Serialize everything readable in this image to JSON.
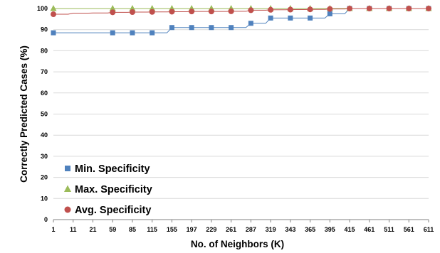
{
  "chart_data": {
    "type": "line",
    "title": "",
    "xlabel": "No. of Neighbors (K)",
    "ylabel": "Correctly Predicted Cases (%)",
    "ylim": [
      0,
      100
    ],
    "yticks": [
      "0",
      "10",
      "20",
      "30",
      "40",
      "50",
      "60",
      "70",
      "80",
      "90",
      "100"
    ],
    "categories": [
      "1",
      "11",
      "21",
      "59",
      "85",
      "115",
      "155",
      "197",
      "229",
      "261",
      "287",
      "319",
      "343",
      "365",
      "395",
      "415",
      "461",
      "511",
      "561",
      "611"
    ],
    "grid": "horizontal",
    "legend_position": "bottom-left",
    "series": [
      {
        "name": "Min. Specificity",
        "color": "#4f81bd",
        "marker": "square",
        "markers": [
          88.5,
          null,
          null,
          88.5,
          88.5,
          88.5,
          91,
          91,
          91,
          91,
          93,
          95.5,
          95.5,
          95.5,
          97.5,
          100,
          100,
          100,
          100,
          100
        ],
        "line": [
          88.5,
          88.5,
          88.5,
          88.5,
          88.5,
          88.5,
          91,
          91,
          91,
          91,
          93,
          95.5,
          95.5,
          95.5,
          97.5,
          100,
          100,
          100,
          100,
          100
        ]
      },
      {
        "name": "Max. Specificity",
        "color": "#9bbb59",
        "marker": "triangle",
        "markers": [
          100,
          null,
          null,
          100,
          100,
          100,
          100,
          100,
          100,
          100,
          100,
          100,
          100,
          100,
          100,
          100,
          100,
          100,
          100,
          100
        ],
        "line": [
          100,
          100,
          100,
          100,
          100,
          100,
          100,
          100,
          100,
          100,
          100,
          100,
          100,
          100,
          100,
          100,
          100,
          100,
          100,
          100
        ]
      },
      {
        "name": "Avg. Specificity",
        "color": "#c0504d",
        "marker": "circle",
        "markers": [
          97.3,
          null,
          null,
          98.2,
          98.3,
          98.4,
          98.5,
          98.6,
          98.6,
          98.7,
          99.2,
          99.4,
          99.5,
          99.6,
          99.8,
          100,
          100,
          100,
          100,
          100
        ],
        "line": [
          97.3,
          97.8,
          97.9,
          98.2,
          98.3,
          98.4,
          98.5,
          98.6,
          98.6,
          98.7,
          99.2,
          99.4,
          99.5,
          99.6,
          99.8,
          100,
          100,
          100,
          100,
          100
        ]
      }
    ]
  },
  "colors": {
    "gridline": "#d9d9d9",
    "axis": "#808080"
  }
}
